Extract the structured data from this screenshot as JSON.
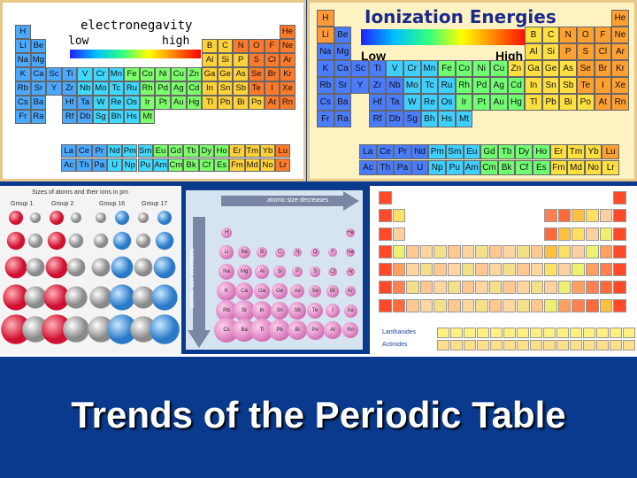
{
  "slide_title": "Trends of the Periodic Table",
  "electroneg": {
    "title": "electronegavity",
    "low": "low",
    "high": "high",
    "rows": [
      [
        "H",
        "",
        "",
        "",
        "",
        "",
        "",
        "",
        "",
        "",
        "",
        "",
        "",
        "",
        "",
        "",
        "",
        "He"
      ],
      [
        "Li",
        "Be",
        "",
        "",
        "",
        "",
        "",
        "",
        "",
        "",
        "",
        "",
        "B",
        "C",
        "N",
        "O",
        "F",
        "Ne"
      ],
      [
        "Na",
        "Mg",
        "",
        "",
        "",
        "",
        "",
        "",
        "",
        "",
        "",
        "",
        "Al",
        "Si",
        "P",
        "S",
        "Cl",
        "Ar"
      ],
      [
        "K",
        "Ca",
        "Sc",
        "Ti",
        "V",
        "Cr",
        "Mn",
        "Fe",
        "Co",
        "Ni",
        "Cu",
        "Zn",
        "Ga",
        "Ge",
        "As",
        "Se",
        "Br",
        "Kr"
      ],
      [
        "Rb",
        "Sr",
        "Y",
        "Zr",
        "Nb",
        "Mo",
        "Tc",
        "Ru",
        "Rh",
        "Pd",
        "Ag",
        "Cd",
        "In",
        "Sn",
        "Sb",
        "Te",
        "I",
        "Xe"
      ],
      [
        "Cs",
        "Ba",
        "",
        "Hf",
        "Ta",
        "W",
        "Re",
        "Os",
        "Ir",
        "Pt",
        "Au",
        "Hg",
        "Tl",
        "Pb",
        "Bi",
        "Po",
        "At",
        "Rn"
      ],
      [
        "Fr",
        "Ra",
        "",
        "Rf",
        "Db",
        "Sg",
        "Bh",
        "Hs",
        "Mt",
        "",
        "",
        "",
        "",
        "",
        "",
        "",
        "",
        ""
      ]
    ],
    "lanthanides": [
      "La",
      "Ce",
      "Pr",
      "Nd",
      "Pm",
      "Sm",
      "Eu",
      "Gd",
      "Tb",
      "Dy",
      "Ho",
      "Er",
      "Tm",
      "Yb",
      "Lu"
    ],
    "actinides": [
      "Ac",
      "Th",
      "Pa",
      "U",
      "Np",
      "Pu",
      "Am",
      "Cm",
      "Bk",
      "Cf",
      "Es",
      "Fm",
      "Md",
      "No",
      "Lr"
    ]
  },
  "ionization": {
    "title": "Ionization Energies",
    "low": "Low",
    "high": "High",
    "rows": [
      [
        "H",
        "",
        "",
        "",
        "",
        "",
        "",
        "",
        "",
        "",
        "",
        "",
        "",
        "",
        "",
        "",
        "",
        "He"
      ],
      [
        "Li",
        "Be",
        "",
        "",
        "",
        "",
        "",
        "",
        "",
        "",
        "",
        "",
        "B",
        "C",
        "N",
        "O",
        "F",
        "Ne"
      ],
      [
        "Na",
        "Mg",
        "",
        "",
        "",
        "",
        "",
        "",
        "",
        "",
        "",
        "",
        "Al",
        "Si",
        "P",
        "S",
        "Cl",
        "Ar"
      ],
      [
        "K",
        "Ca",
        "Sc",
        "Ti",
        "V",
        "Cr",
        "Mn",
        "Fe",
        "Co",
        "Ni",
        "Cu",
        "Zn",
        "Ga",
        "Ge",
        "As",
        "Se",
        "Br",
        "Kr"
      ],
      [
        "Rb",
        "Sr",
        "Y",
        "Zr",
        "Nb",
        "Mo",
        "Tc",
        "Ru",
        "Rh",
        "Pd",
        "Ag",
        "Cd",
        "In",
        "Sn",
        "Sb",
        "Te",
        "I",
        "Xe"
      ],
      [
        "Cs",
        "Ba",
        "",
        "Hf",
        "Ta",
        "W",
        "Re",
        "Os",
        "Ir",
        "Pt",
        "Au",
        "Hg",
        "Tl",
        "Pb",
        "Bi",
        "Po",
        "At",
        "Rn"
      ],
      [
        "Fr",
        "Ra",
        "",
        "Rf",
        "Db",
        "Sg",
        "Bh",
        "Hs",
        "Mt",
        "",
        "",
        "",
        "",
        "",
        "",
        "",
        "",
        ""
      ]
    ],
    "lanthanides": [
      "La",
      "Ce",
      "Pr",
      "Nd",
      "Pm",
      "Sm",
      "Eu",
      "Gd",
      "Tb",
      "Dy",
      "Ho",
      "Er",
      "Tm",
      "Yb",
      "Lu"
    ],
    "actinides": [
      "Ac",
      "Th",
      "Pa",
      "U",
      "Np",
      "Pu",
      "Am",
      "Cm",
      "Bk",
      "Cf",
      "Es",
      "Fm",
      "Md",
      "No",
      "Lr"
    ]
  },
  "sizes": {
    "title": "Sizes of atoms and their ions in pm",
    "groups": [
      "Group 1",
      "Group 2",
      "Group 16",
      "Group 17"
    ]
  },
  "atomic_size": {
    "across_label": "atomic size decreases",
    "down_label": "atomic size increases",
    "rows": [
      [
        "H",
        "",
        "",
        "",
        "",
        "",
        "",
        "He"
      ],
      [
        "Li",
        "Be",
        "B",
        "C",
        "N",
        "O",
        "F",
        "Ne"
      ],
      [
        "Na",
        "Mg",
        "Al",
        "Si",
        "P",
        "S",
        "Cl",
        "Ar"
      ],
      [
        "K",
        "Ca",
        "Ga",
        "Ge",
        "As",
        "Se",
        "Br",
        "Kr"
      ],
      [
        "Rb",
        "Sr",
        "In",
        "Sn",
        "Sb",
        "Te",
        "I",
        "Xe"
      ],
      [
        "Cs",
        "Ba",
        "Tl",
        "Pb",
        "Bi",
        "Po",
        "At",
        "Rn"
      ]
    ]
  },
  "color_table": {
    "lanthanides_label": "Lanthanides",
    "actinides_label": "Actinides"
  },
  "colors": {
    "slide_bg": "#0a3a8e",
    "ion_bg": "#fff2c2",
    "ion_title": "#1a2a8a"
  }
}
